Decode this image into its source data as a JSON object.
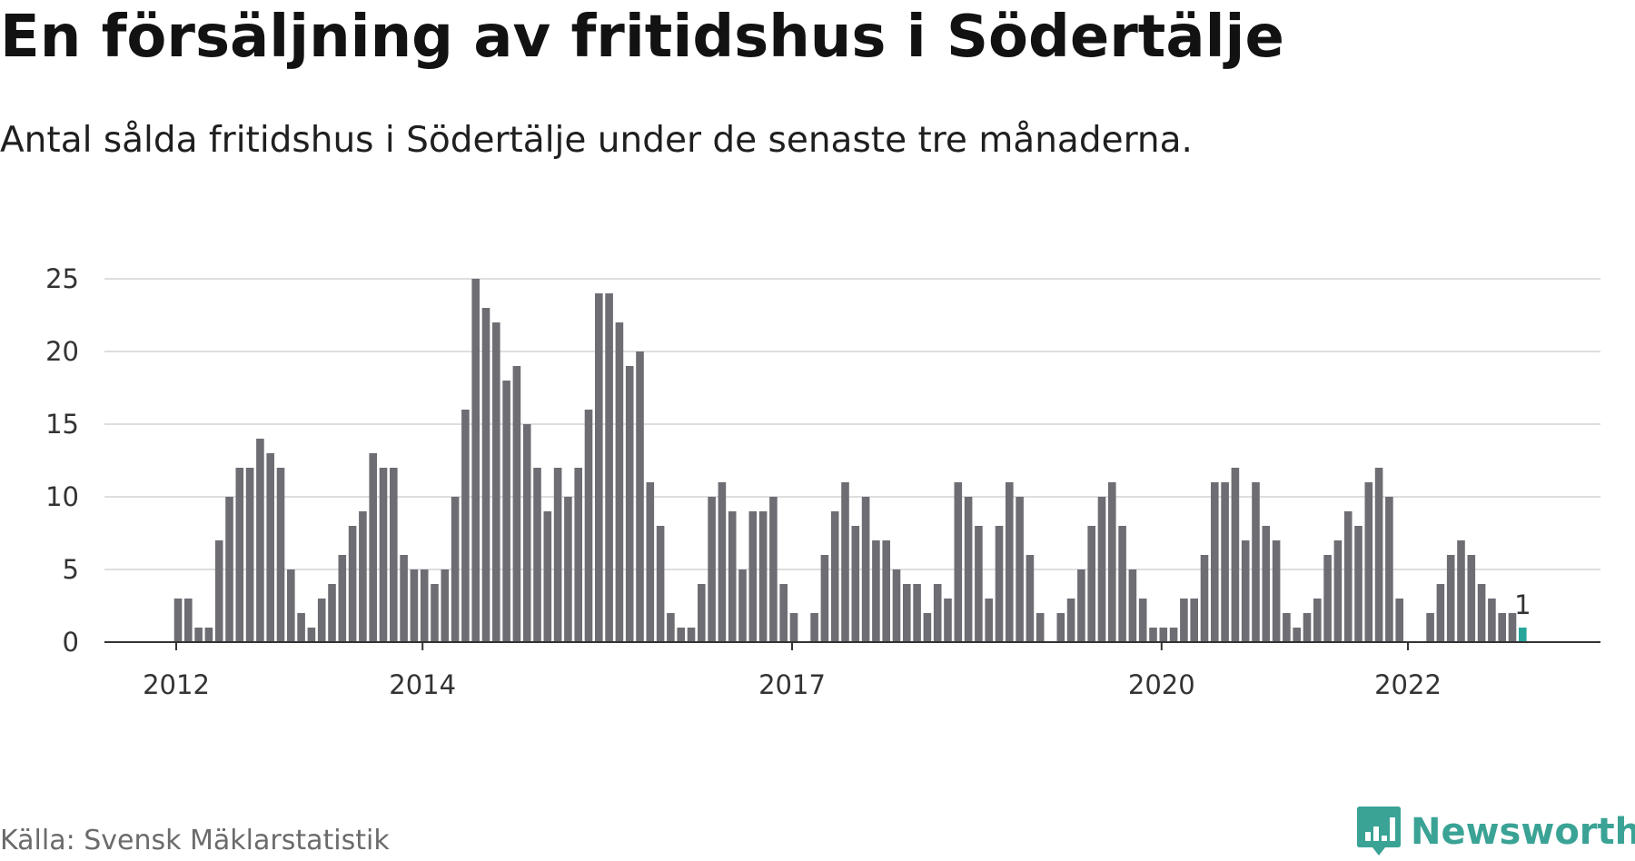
{
  "title": "En försäljning av fritidshus i Södertälje",
  "subtitle": "Antal sålda fritidshus i Södertälje under de senaste tre månaderna.",
  "source": "Källa: Svensk Mäklarstatistik",
  "brand": "Newsworthy",
  "colors": {
    "bar": "#6e6d74",
    "highlight": "#26a69a",
    "grid": "#dedede",
    "axis": "#333333",
    "brand": "#3aa395"
  },
  "chart_data": {
    "type": "bar",
    "title": "En försäljning av fritidshus i Södertälje",
    "subtitle": "Antal sålda fritidshus i Södertälje under de senaste tre månaderna.",
    "xlabel": "",
    "ylabel": "",
    "ylim": [
      0,
      25
    ],
    "yticks": [
      0,
      5,
      10,
      15,
      20,
      25
    ],
    "grid": true,
    "x_tick_labels": [
      {
        "label": "2012",
        "index": 0
      },
      {
        "label": "2014",
        "index": 24
      },
      {
        "label": "2017",
        "index": 60
      },
      {
        "label": "2020",
        "index": 96
      },
      {
        "label": "2022",
        "index": 120
      }
    ],
    "values": [
      3,
      3,
      1,
      1,
      7,
      10,
      12,
      12,
      14,
      13,
      12,
      5,
      2,
      1,
      3,
      4,
      6,
      8,
      9,
      13,
      12,
      12,
      6,
      5,
      5,
      4,
      5,
      10,
      16,
      25,
      23,
      22,
      18,
      19,
      15,
      12,
      9,
      12,
      10,
      12,
      16,
      24,
      24,
      22,
      19,
      20,
      11,
      8,
      2,
      1,
      1,
      4,
      10,
      11,
      9,
      5,
      9,
      9,
      10,
      4,
      2,
      0,
      2,
      6,
      9,
      11,
      8,
      10,
      7,
      7,
      5,
      4,
      4,
      2,
      4,
      3,
      11,
      10,
      8,
      3,
      8,
      11,
      10,
      6,
      2,
      0,
      2,
      3,
      5,
      8,
      10,
      11,
      8,
      5,
      3,
      1,
      1,
      1,
      3,
      3,
      6,
      11,
      11,
      12,
      7,
      11,
      8,
      7,
      2,
      1,
      2,
      3,
      6,
      7,
      9,
      8,
      11,
      12,
      10,
      3,
      0,
      0,
      2,
      4,
      6,
      7,
      6,
      4,
      3,
      2,
      2,
      1
    ],
    "highlight_index": 131,
    "annotations": [
      {
        "index": 131,
        "text": "1"
      }
    ]
  }
}
